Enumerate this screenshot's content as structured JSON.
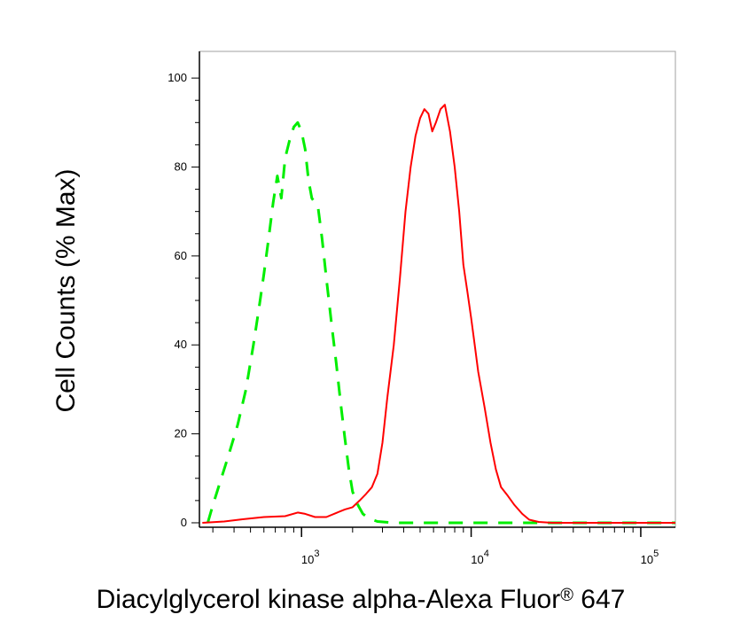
{
  "chart_data": {
    "type": "line",
    "title": "",
    "xlabel": "Diacylglycerol kinase alpha-Alexa Fluor",
    "xlabel_mark": "®",
    "xlabel_suffix": " 647",
    "ylabel": "Cell Counts (% Max)",
    "x_scale": "log",
    "xlim": [
      250,
      160000
    ],
    "ylim": [
      -1,
      106
    ],
    "y_ticks": [
      0,
      20,
      40,
      60,
      80,
      100
    ],
    "y_tick_labels": [
      "0",
      "20",
      "40",
      "60",
      "80",
      "100"
    ],
    "x_major_ticks": [
      1000,
      10000,
      100000
    ],
    "x_tick_labels": [
      {
        "base": "10",
        "exp": "3"
      },
      {
        "base": "10",
        "exp": "4"
      },
      {
        "base": "10",
        "exp": "5"
      }
    ],
    "grid": false,
    "legend": "none",
    "series": [
      {
        "color": "#00ee00",
        "style": "dashed",
        "points": [
          [
            280,
            0
          ],
          [
            300,
            4
          ],
          [
            330,
            9
          ],
          [
            370,
            15
          ],
          [
            420,
            22
          ],
          [
            470,
            30
          ],
          [
            520,
            40
          ],
          [
            560,
            48
          ],
          [
            600,
            56
          ],
          [
            640,
            64
          ],
          [
            680,
            72
          ],
          [
            720,
            78
          ],
          [
            760,
            73
          ],
          [
            800,
            82
          ],
          [
            850,
            86
          ],
          [
            900,
            89
          ],
          [
            950,
            90
          ],
          [
            1000,
            88
          ],
          [
            1050,
            84
          ],
          [
            1100,
            77
          ],
          [
            1150,
            73
          ],
          [
            1250,
            71
          ],
          [
            1320,
            64
          ],
          [
            1400,
            55
          ],
          [
            1500,
            45
          ],
          [
            1600,
            36
          ],
          [
            1700,
            27
          ],
          [
            1800,
            19
          ],
          [
            1900,
            12
          ],
          [
            2000,
            7
          ],
          [
            2150,
            4
          ],
          [
            2300,
            2
          ],
          [
            2500,
            1
          ],
          [
            2800,
            0.3
          ],
          [
            3500,
            0
          ],
          [
            10000,
            0
          ],
          [
            50000,
            0
          ],
          [
            160000,
            0
          ]
        ]
      },
      {
        "color": "#ff0000",
        "style": "solid",
        "points": [
          [
            260,
            0
          ],
          [
            350,
            0.3
          ],
          [
            450,
            0.8
          ],
          [
            600,
            1.3
          ],
          [
            800,
            1.5
          ],
          [
            950,
            2.3
          ],
          [
            1050,
            2
          ],
          [
            1200,
            1.3
          ],
          [
            1400,
            1.3
          ],
          [
            1600,
            2.2
          ],
          [
            1800,
            3
          ],
          [
            2000,
            3.5
          ],
          [
            2200,
            5
          ],
          [
            2400,
            6.5
          ],
          [
            2600,
            8
          ],
          [
            2800,
            11
          ],
          [
            3000,
            18
          ],
          [
            3200,
            28
          ],
          [
            3500,
            40
          ],
          [
            3800,
            55
          ],
          [
            4100,
            70
          ],
          [
            4400,
            80
          ],
          [
            4700,
            87
          ],
          [
            5000,
            91
          ],
          [
            5300,
            93
          ],
          [
            5600,
            92
          ],
          [
            5900,
            88
          ],
          [
            6200,
            90
          ],
          [
            6600,
            93
          ],
          [
            7000,
            94
          ],
          [
            7500,
            88
          ],
          [
            8000,
            80
          ],
          [
            8500,
            70
          ],
          [
            9000,
            58
          ],
          [
            9500,
            52
          ],
          [
            10000,
            46
          ],
          [
            10500,
            40
          ],
          [
            11000,
            34
          ],
          [
            12000,
            26
          ],
          [
            13000,
            18
          ],
          [
            14000,
            12
          ],
          [
            15000,
            8
          ],
          [
            16500,
            6
          ],
          [
            18000,
            4
          ],
          [
            20000,
            2
          ],
          [
            22000,
            0.7
          ],
          [
            25000,
            0.2
          ],
          [
            30000,
            0
          ],
          [
            60000,
            0
          ],
          [
            160000,
            0
          ]
        ]
      }
    ]
  }
}
